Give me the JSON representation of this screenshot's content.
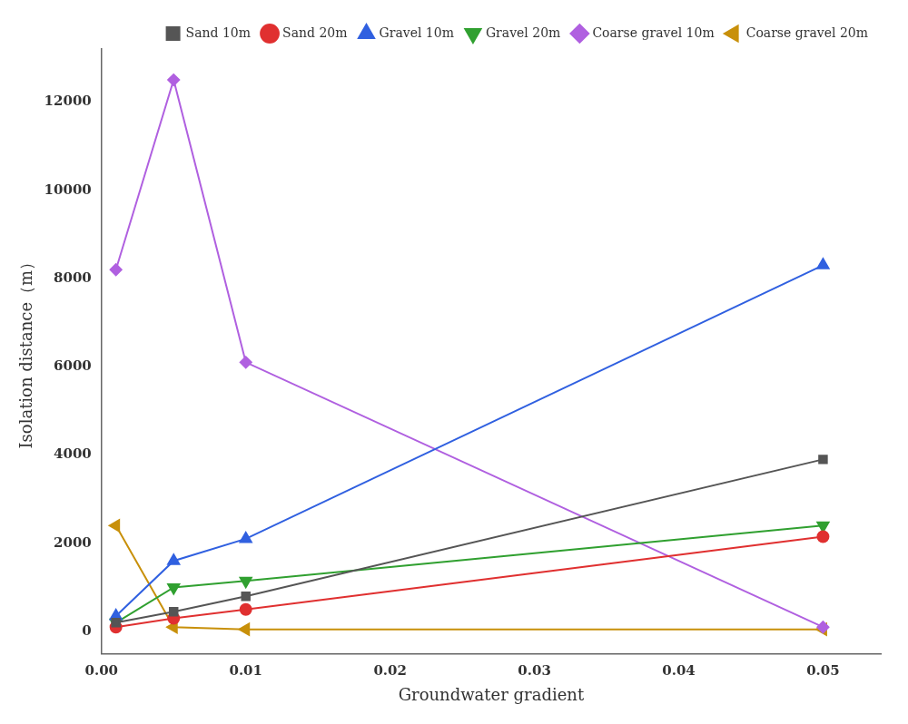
{
  "chart_data": {
    "type": "line",
    "xlabel": "Groundwater gradient",
    "ylabel": "Isolation distance（m）",
    "xlim": [
      0.0,
      0.054
    ],
    "ylim": [
      -500,
      13200
    ],
    "xticks": [
      {
        "value": 0.0,
        "label": "0.00"
      },
      0.01,
      0.02,
      0.03,
      0.04,
      0.05
    ],
    "yticks": [
      0,
      2000,
      4000,
      6000,
      8000,
      10000,
      12000
    ],
    "grid": false,
    "legend": "upper right",
    "x": [
      0.001,
      0.005,
      0.01,
      0.05
    ],
    "series": [
      {
        "name": "Sand 10m",
        "color": "#555555",
        "marker": "square",
        "values": [
          200,
          450,
          800,
          3900
        ]
      },
      {
        "name": "Sand 20m",
        "color": "#e03030",
        "marker": "circle",
        "values": [
          100,
          300,
          500,
          2150
        ]
      },
      {
        "name": "Gravel 10m",
        "color": "#3060e0",
        "marker": "triangle_up",
        "values": [
          350,
          1600,
          2100,
          8300
        ]
      },
      {
        "name": "Gravel 20m",
        "color": "#30a030",
        "marker": "triangle_down",
        "values": [
          200,
          1000,
          1150,
          2400
        ]
      },
      {
        "name": "Coarse gravel 10m",
        "color": "#b060e0",
        "marker": "diamond",
        "values": [
          8200,
          12500,
          6100,
          100
        ]
      },
      {
        "name": "Coarse gravel 20m",
        "color": "#c8900a",
        "marker": "triangle_left",
        "values": [
          2400,
          100,
          50,
          50
        ]
      }
    ]
  }
}
